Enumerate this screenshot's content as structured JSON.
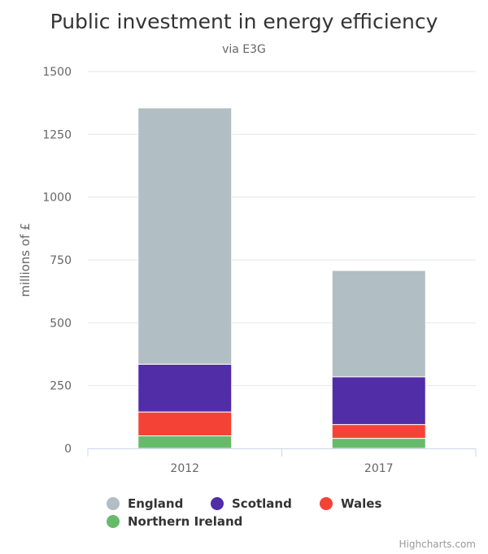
{
  "chart_data": {
    "type": "bar",
    "stacked": true,
    "title": "Public investment in energy efficiency",
    "subtitle": "via E3G",
    "ylabel": "millions of £",
    "ylim": [
      0,
      1500
    ],
    "yticks": [
      0,
      250,
      500,
      750,
      1000,
      1250,
      1500
    ],
    "categories": [
      "2012",
      "2017"
    ],
    "series": [
      {
        "name": "England",
        "color": "#b1bec4",
        "values": [
          1020,
          423
        ]
      },
      {
        "name": "Scotland",
        "color": "#512da8",
        "values": [
          190,
          190
        ]
      },
      {
        "name": "Wales",
        "color": "#f44336",
        "values": [
          95,
          55
        ]
      },
      {
        "name": "Northern Ireland",
        "color": "#66bb6a",
        "values": [
          50,
          40
        ]
      }
    ],
    "stack_order": [
      "Northern Ireland",
      "Wales",
      "Scotland",
      "England"
    ],
    "grid": true,
    "legend_position": "bottom"
  },
  "credits": "Highcharts.com"
}
